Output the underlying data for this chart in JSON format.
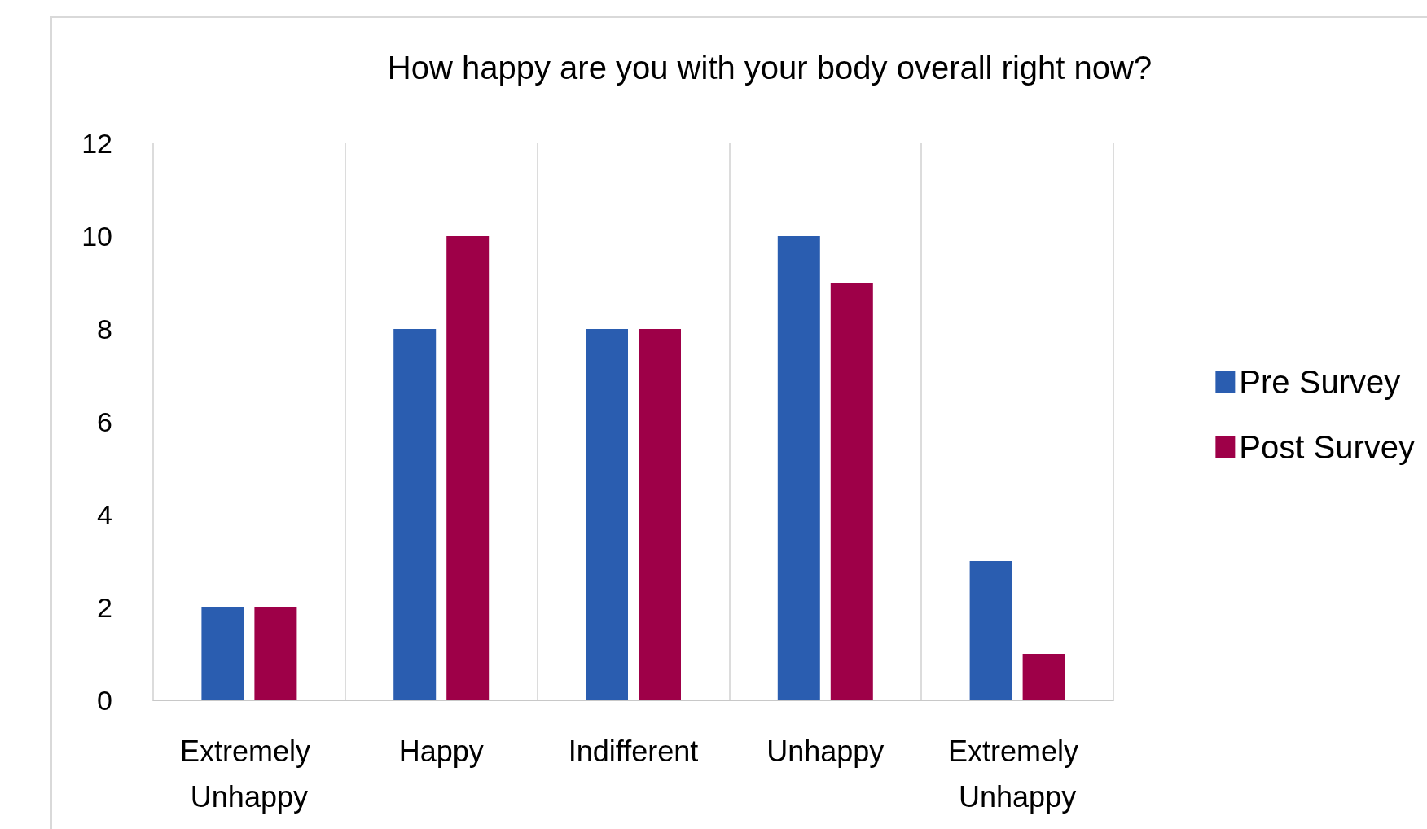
{
  "chart_data": {
    "type": "bar",
    "title": "How happy are you with your body overall right now?",
    "categories": [
      "Extremely Unhappy",
      "Happy",
      "Indifferent",
      "Unhappy",
      "Extremely Unhappy"
    ],
    "series": [
      {
        "name": "Pre Survey",
        "color": "#2a5db0",
        "values": [
          2,
          8,
          8,
          10,
          3
        ]
      },
      {
        "name": "Post Survey",
        "color": "#9e0048",
        "values": [
          2,
          10,
          8,
          9,
          1
        ]
      }
    ],
    "ylim": [
      0,
      12
    ],
    "yticks": [
      0,
      2,
      4,
      6,
      8,
      10,
      12
    ],
    "grid": "x",
    "legend": "right"
  }
}
